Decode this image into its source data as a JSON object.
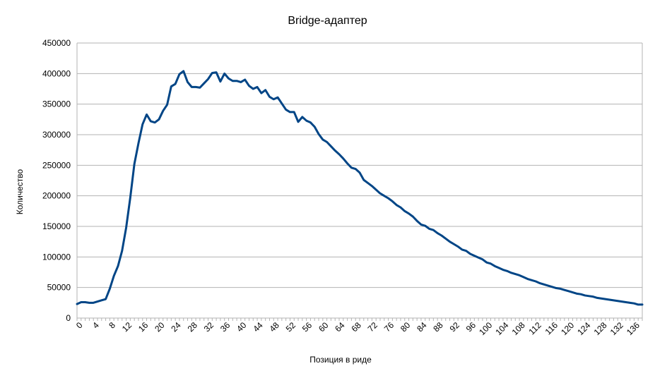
{
  "chart_data": {
    "type": "line",
    "title": "Bridge-адаптер",
    "xlabel": "Позиция в риде",
    "ylabel": "Количество",
    "xlim": [
      0,
      138
    ],
    "ylim": [
      0,
      450000
    ],
    "y_ticks": [
      0,
      50000,
      100000,
      150000,
      200000,
      250000,
      300000,
      350000,
      400000,
      450000
    ],
    "x_tick_labels": [
      "0",
      "4",
      "8",
      "12",
      "16",
      "20",
      "24",
      "28",
      "32",
      "36",
      "40",
      "44",
      "48",
      "52",
      "56",
      "60",
      "64",
      "68",
      "72",
      "76",
      "80",
      "84",
      "88",
      "92",
      "96",
      "100",
      "104",
      "108",
      "112",
      "116",
      "120",
      "124",
      "128",
      "132",
      "136"
    ],
    "x_tick_step": 4,
    "grid": true,
    "legend": "none",
    "line_color": "#004586",
    "series": [
      {
        "values": [
          23000,
          26000,
          26000,
          25000,
          25000,
          27000,
          29000,
          31000,
          48000,
          69000,
          85000,
          110000,
          148000,
          197000,
          252000,
          286000,
          317000,
          333000,
          322000,
          320000,
          325000,
          339000,
          349000,
          379000,
          383000,
          399000,
          404000,
          386000,
          378000,
          378000,
          377000,
          384000,
          391000,
          401000,
          402000,
          387000,
          400000,
          392000,
          388000,
          388000,
          386000,
          390000,
          380000,
          375000,
          378000,
          368000,
          373000,
          362000,
          358000,
          361000,
          351000,
          341000,
          337000,
          337000,
          321000,
          329000,
          323000,
          320000,
          313000,
          301000,
          292000,
          288000,
          281000,
          274000,
          268000,
          261000,
          253000,
          246000,
          244000,
          238000,
          226000,
          221000,
          216000,
          210000,
          204000,
          200000,
          196000,
          191000,
          185000,
          181000,
          175000,
          171000,
          166000,
          159000,
          153000,
          151000,
          146000,
          144000,
          139000,
          135000,
          130000,
          125000,
          121000,
          117000,
          112000,
          110000,
          105000,
          102000,
          99000,
          96000,
          91000,
          89000,
          85000,
          82000,
          79000,
          77000,
          74000,
          72000,
          70000,
          67000,
          64000,
          62000,
          60000,
          57000,
          55000,
          53000,
          51000,
          49000,
          48000,
          46000,
          44000,
          42000,
          40000,
          39000,
          37000,
          36000,
          35000,
          33000,
          32000,
          31000,
          30000,
          29000,
          28000,
          27000,
          26000,
          25000,
          24000,
          22000,
          22000
        ]
      }
    ]
  }
}
